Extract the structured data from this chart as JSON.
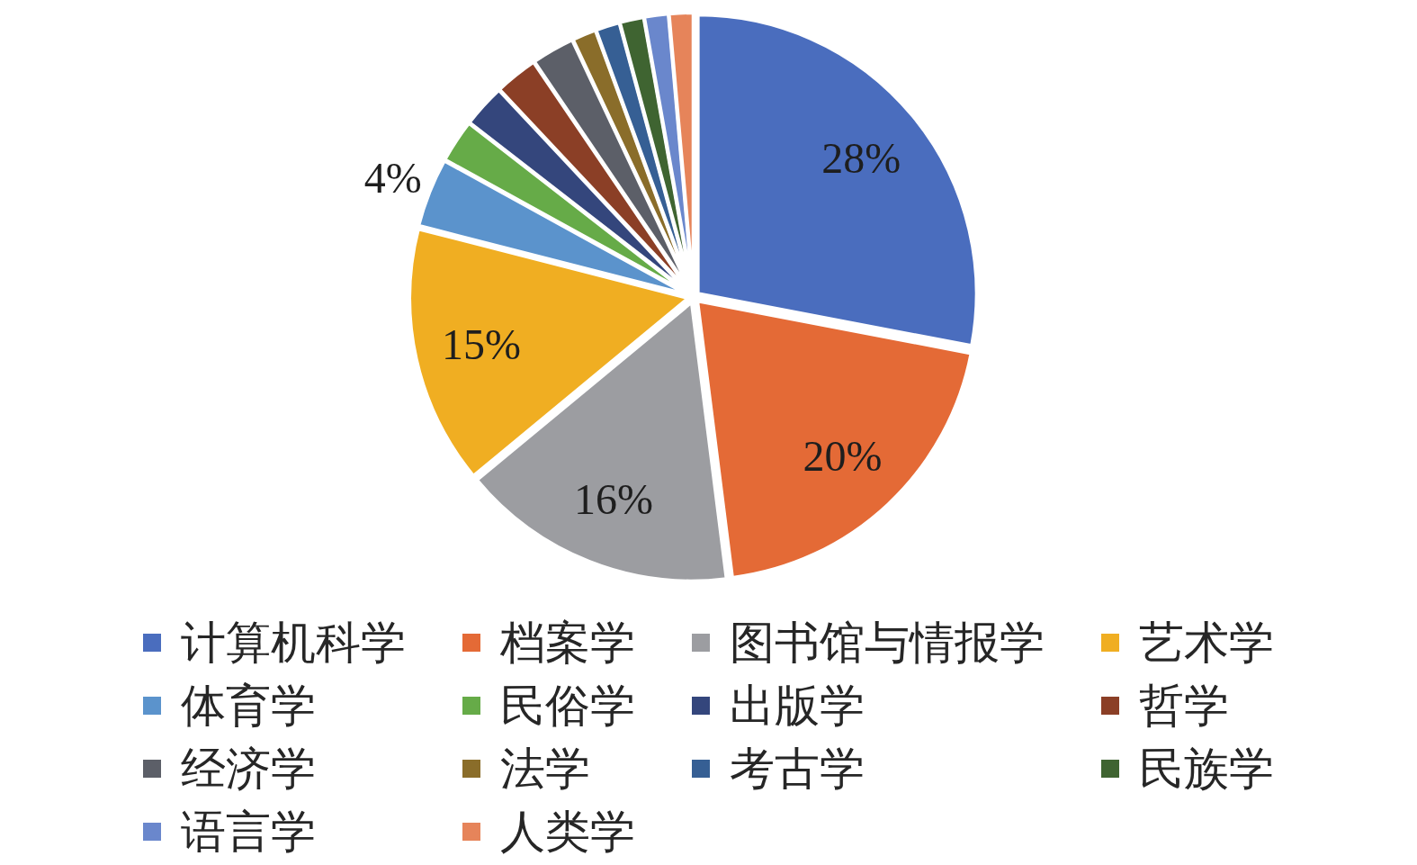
{
  "chart_data": {
    "type": "pie",
    "categories": [
      "计算机科学",
      "档案学",
      "图书馆与情报学",
      "艺术学",
      "体育学",
      "民俗学",
      "出版学",
      "哲学",
      "经济学",
      "法学",
      "考古学",
      "民族学",
      "语言学",
      "人类学"
    ],
    "values": [
      28,
      20,
      16,
      15,
      4,
      2.5,
      2.5,
      2.5,
      2.5,
      1.4,
      1.4,
      1.4,
      1.4,
      1.4
    ],
    "colors": [
      "#4a6dbe",
      "#e46a36",
      "#9c9da1",
      "#f0ae22",
      "#5b93cc",
      "#66ab48",
      "#34467c",
      "#8b3f26",
      "#5c5f68",
      "#8a6d2a",
      "#365f94",
      "#3f6431",
      "#6a87cc",
      "#e6845a"
    ],
    "value_labels": [
      "28%",
      "20%",
      "16%",
      "15%",
      "4%",
      null,
      null,
      null,
      null,
      null,
      null,
      null,
      null,
      null
    ],
    "legend": "bottom"
  }
}
